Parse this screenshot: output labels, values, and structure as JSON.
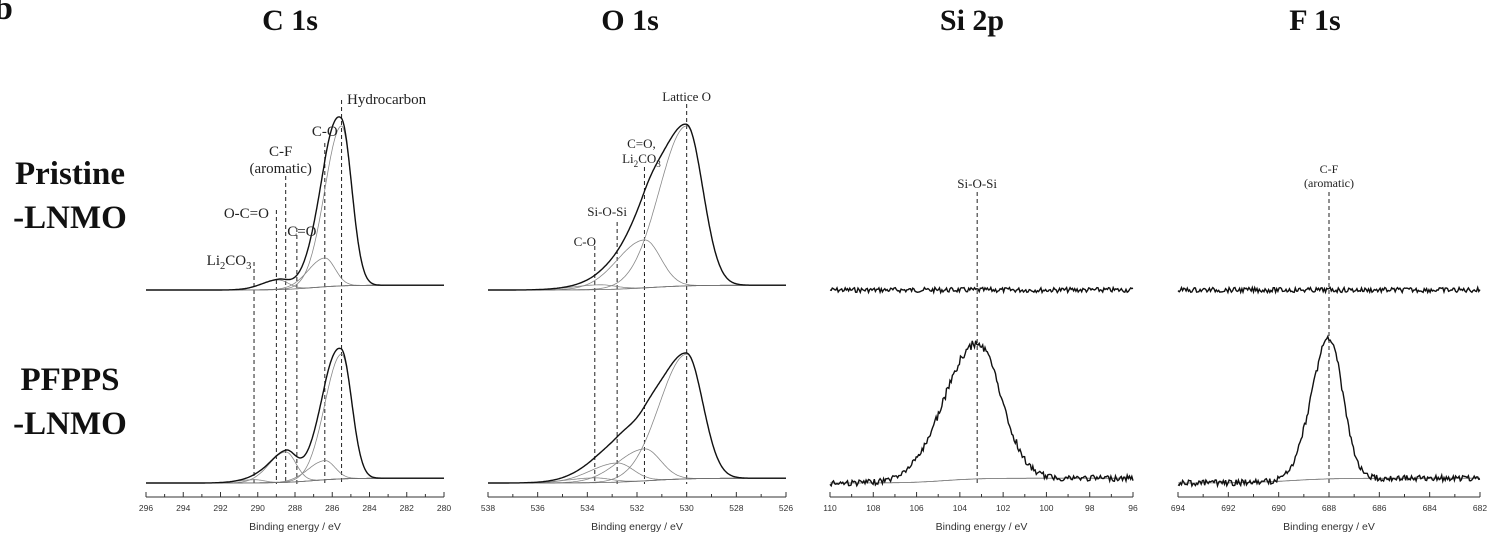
{
  "panel_letter": "b",
  "row_labels": [
    {
      "line1": "Pristine",
      "line2": "-LNMO"
    },
    {
      "line1": "PFPPS",
      "line2": "-LNMO"
    }
  ],
  "chart_data": [
    {
      "type": "line",
      "title": "C 1s",
      "xlabel": "Binding energy / eV",
      "xlim": [
        296,
        280
      ],
      "x_reversed": true,
      "xticks": [
        "296",
        "294",
        "292",
        "290",
        "288",
        "286",
        "284",
        "282",
        "280"
      ],
      "peaks": [
        {
          "label": "Hydrocarbon",
          "x": 285.5
        },
        {
          "label": "C-O",
          "x": 286.4
        },
        {
          "label": "C=O",
          "x": 287.9
        },
        {
          "label": "C-F (aromatic)",
          "x": 288.5
        },
        {
          "label": "O-C=O",
          "x": 289.0
        },
        {
          "label": "Li2CO3",
          "x": 290.2
        }
      ],
      "series": [
        {
          "name": "Pristine-LNMO",
          "peak_heights": {
            "285.5": 1.0,
            "286.4": 0.18,
            "288.9": 0.06
          }
        },
        {
          "name": "PFPPS-LNMO",
          "peak_heights": {
            "285.5": 0.78,
            "286.4": 0.12,
            "288.5": 0.19,
            "290.2": 0.02
          }
        }
      ]
    },
    {
      "type": "line",
      "title": "O 1s",
      "xlabel": "Binding energy / eV",
      "xlim": [
        538,
        526
      ],
      "x_reversed": true,
      "xticks": [
        "538",
        "536",
        "534",
        "532",
        "530",
        "528",
        "526"
      ],
      "peaks": [
        {
          "label": "Lattice O",
          "x": 530.0
        },
        {
          "label": "C=O, Li2CO3",
          "x": 531.7
        },
        {
          "label": "Si-O-Si",
          "x": 532.8
        },
        {
          "label": "C-O",
          "x": 533.7
        }
      ],
      "series": [
        {
          "name": "Pristine-LNMO",
          "peak_heights": {
            "530.0": 1.0,
            "531.7": 0.3,
            "533.5": 0.03
          }
        },
        {
          "name": "PFPPS-LNMO",
          "peak_heights": {
            "530.0": 0.78,
            "531.7": 0.2,
            "532.8": 0.12,
            "533.7": 0.03
          }
        }
      ]
    },
    {
      "type": "line",
      "title": "Si 2p",
      "xlabel": "Binding energy / eV",
      "xlim": [
        110,
        96
      ],
      "x_reversed": true,
      "xticks": [
        "110",
        "108",
        "106",
        "104",
        "102",
        "100",
        "98",
        "96"
      ],
      "peaks": [
        {
          "label": "Si-O-Si",
          "x": 103.2
        }
      ],
      "series": [
        {
          "name": "Pristine-LNMO",
          "peak_heights": {}
        },
        {
          "name": "PFPPS-LNMO",
          "peak_heights": {
            "103.2": 0.85
          }
        }
      ]
    },
    {
      "type": "line",
      "title": "F 1s",
      "xlabel": "Binding energy / eV",
      "xlim": [
        694,
        682
      ],
      "x_reversed": true,
      "xticks": [
        "694",
        "692",
        "690",
        "688",
        "686",
        "684",
        "682"
      ],
      "peaks": [
        {
          "label": "C-F (aromatic)",
          "x": 688.0
        }
      ],
      "series": [
        {
          "name": "Pristine-LNMO",
          "peak_heights": {}
        },
        {
          "name": "PFPPS-LNMO",
          "peak_heights": {
            "688.0": 0.88
          }
        }
      ]
    }
  ]
}
